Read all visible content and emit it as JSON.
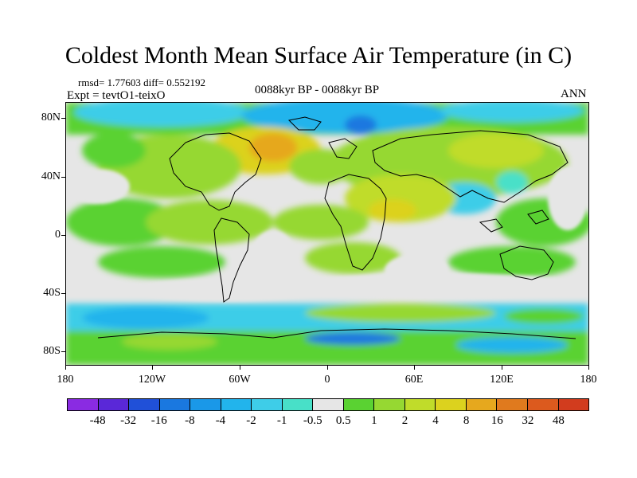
{
  "title": "Coldest Month Mean Surface Air Temperature (in C)",
  "stats": {
    "rmsd_line": "rmsd= 1.77603 diff= 0.552192"
  },
  "experiment": "Expt = tevtO1-teixO",
  "period": "0088kyr BP - 0088kyr BP",
  "season": "ANN",
  "axes": {
    "lat_labels": [
      "80N",
      "40N",
      "0",
      "40S",
      "80S"
    ],
    "lon_labels": [
      "180",
      "120W",
      "60W",
      "0",
      "60E",
      "120E",
      "180"
    ]
  },
  "colorbar": {
    "labels": [
      "-48",
      "-32",
      "-16",
      "-8",
      "-4",
      "-2",
      "-1",
      "-0.5",
      "0.5",
      "1",
      "2",
      "4",
      "8",
      "16",
      "32",
      "48"
    ],
    "colors": [
      "#8a2be2",
      "#5a28d8",
      "#2050d8",
      "#1a78e0",
      "#1a98e8",
      "#22b4ec",
      "#3ecde8",
      "#48e0c8",
      "#e6e6e6",
      "#5ad232",
      "#96d832",
      "#c0dc2a",
      "#dcd21e",
      "#e6a81e",
      "#e07a1e",
      "#dc5a1e",
      "#d23c1e"
    ]
  }
}
